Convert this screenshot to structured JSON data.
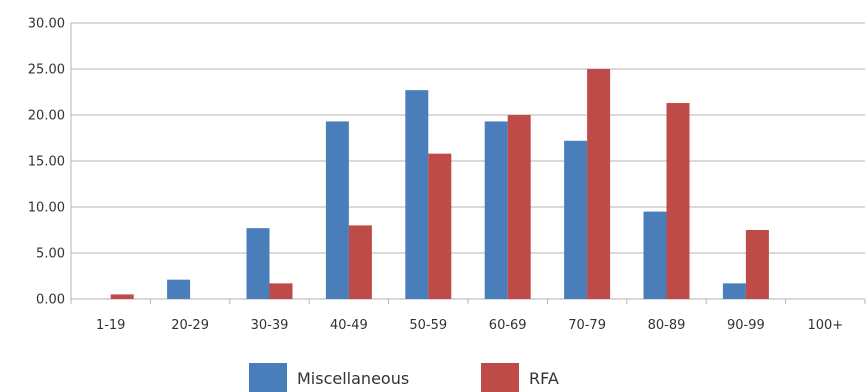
{
  "chart_data": {
    "type": "bar",
    "categories": [
      "1-19",
      "20-29",
      "30-39",
      "40-49",
      "50-59",
      "60-69",
      "70-79",
      "80-89",
      "90-99",
      "100+"
    ],
    "series": [
      {
        "name": "Miscellaneous",
        "color": "#4a7ebb",
        "values": [
          0,
          2.1,
          7.7,
          19.3,
          22.7,
          19.3,
          17.2,
          9.5,
          1.7,
          0
        ]
      },
      {
        "name": "RFA",
        "color": "#be4b48",
        "values": [
          0.5,
          0,
          1.7,
          8.0,
          15.8,
          20.0,
          25.0,
          21.3,
          7.5,
          0
        ]
      }
    ],
    "yticks": [
      "0.00",
      "5.00",
      "10.00",
      "15.00",
      "20.00",
      "25.00",
      "30.00"
    ],
    "ylim": [
      0,
      30
    ],
    "grid": true,
    "legend_position": "bottom",
    "title": "",
    "xlabel": "",
    "ylabel": ""
  }
}
